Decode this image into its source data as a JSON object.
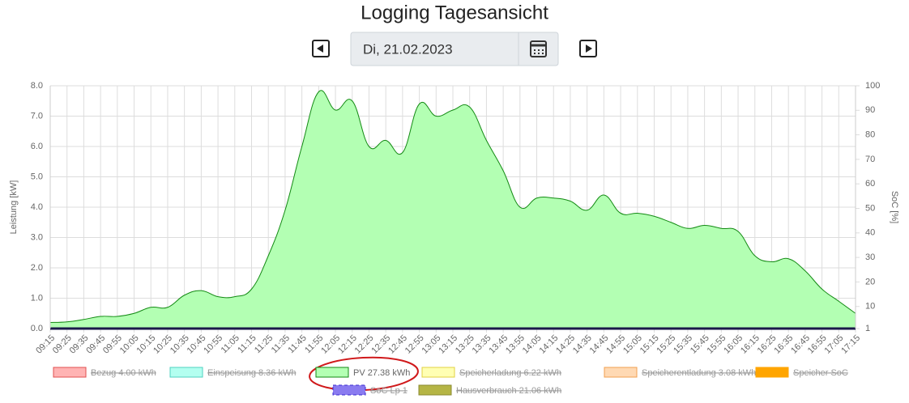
{
  "header": {
    "title": "Logging Tagesansicht",
    "date": "Di, 21.02.2023"
  },
  "chart_data": {
    "type": "area",
    "y_label": "Leistung [kW]",
    "y2_label": "SoC [%]",
    "categories": [
      "09:15",
      "09:25",
      "09:35",
      "09:45",
      "09:55",
      "10:05",
      "10:15",
      "10:25",
      "10:35",
      "10:45",
      "10:55",
      "11:05",
      "11:15",
      "11:25",
      "11:35",
      "11:45",
      "11:55",
      "12:05",
      "12:15",
      "12:25",
      "12:35",
      "12:45",
      "12:55",
      "13:05",
      "13:15",
      "13:25",
      "13:35",
      "13:45",
      "13:55",
      "14:05",
      "14:15",
      "14:25",
      "14:35",
      "14:45",
      "14:55",
      "15:05",
      "15:15",
      "15:25",
      "15:35",
      "15:45",
      "15:55",
      "16:05",
      "16:15",
      "16:25",
      "16:35",
      "16:45",
      "16:55",
      "17:05",
      "17:15"
    ],
    "ylim": [
      0,
      8
    ],
    "yticks": [
      {
        "value": 0,
        "label": "0.0"
      },
      {
        "value": 1,
        "label": "1.0"
      },
      {
        "value": 2,
        "label": "2.0"
      },
      {
        "value": 3,
        "label": "3.0"
      },
      {
        "value": 4,
        "label": "4.0"
      },
      {
        "value": 5,
        "label": "5.0"
      },
      {
        "value": 6,
        "label": "6.0"
      },
      {
        "value": 7,
        "label": "7.0"
      },
      {
        "value": 8,
        "label": "8.0"
      }
    ],
    "y2lim": [
      1,
      100
    ],
    "y2ticks": [
      1,
      10,
      20,
      30,
      40,
      50,
      60,
      70,
      80,
      90,
      100
    ],
    "grid": true,
    "series": [
      {
        "name": "Bezug 4.00 kWh",
        "color": "#ffb3b3",
        "border": "#e05050",
        "hidden": true
      },
      {
        "name": "Einspeisung 8.36 kWh",
        "color": "#b3fff0",
        "border": "#50d0c0",
        "hidden": true
      },
      {
        "name": "PV 27.38 kWh",
        "color": "#b3ffb3",
        "border": "#138a13",
        "hidden": false,
        "values": [
          0.2,
          0.22,
          0.3,
          0.4,
          0.4,
          0.5,
          0.7,
          0.7,
          1.1,
          1.25,
          1.05,
          1.05,
          1.3,
          2.4,
          3.9,
          6.0,
          7.8,
          7.2,
          7.5,
          6.0,
          6.2,
          5.8,
          7.4,
          7.0,
          7.2,
          7.3,
          6.2,
          5.2,
          4.0,
          4.3,
          4.3,
          4.2,
          3.9,
          4.4,
          3.8,
          3.8,
          3.7,
          3.5,
          3.3,
          3.4,
          3.3,
          3.2,
          2.4,
          2.2,
          2.3,
          1.9,
          1.3,
          0.9,
          0.5
        ]
      },
      {
        "name": "Speicherladung 6.22 kWh",
        "color": "#ffffb3",
        "border": "#e0d040",
        "hidden": true
      },
      {
        "name": "Speicherentladung 3.08 kWh",
        "color": "#ffd9b3",
        "border": "#f0a050",
        "hidden": true
      },
      {
        "name": "Speicher SoC",
        "color": "#ffa500",
        "border": "#ffa500",
        "hidden": true,
        "axis": "y2"
      },
      {
        "name": "SoC Lp 1",
        "color": "#8a7bf0",
        "border": "#3b2bd0",
        "hidden": true,
        "axis": "y2"
      },
      {
        "name": "Hausverbrauch 21.06 kWh",
        "color": "#b5b545",
        "border": "#8a8a30",
        "hidden": true
      }
    ]
  }
}
